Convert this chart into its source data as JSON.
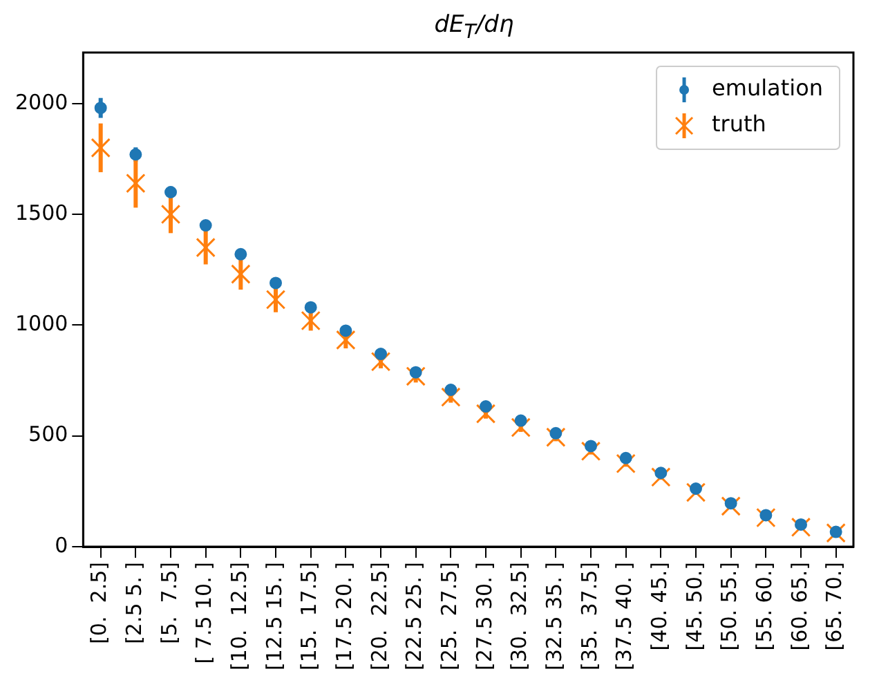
{
  "chart_data": {
    "type": "scatter",
    "title": "dE$_{T}$/dη",
    "categories": [
      "[0.  2.5]",
      "[2.5 5. ]",
      "[5.  7.5]",
      "[ 7.5 10. ]",
      "[10.  12.5]",
      "[12.5 15. ]",
      "[15.  17.5]",
      "[17.5 20. ]",
      "[20.  22.5]",
      "[22.5 25. ]",
      "[25.  27.5]",
      "[27.5 30. ]",
      "[30.  32.5]",
      "[32.5 35. ]",
      "[35.  37.5]",
      "[37.5 40. ]",
      "[40. 45.]",
      "[45. 50.]",
      "[50. 55.]",
      "[55. 60.]",
      "[60. 65.]",
      "[65. 70.]"
    ],
    "series": [
      {
        "name": "emulation",
        "color": "#1f77b4",
        "marker": "circle",
        "values": [
          1980,
          1770,
          1600,
          1450,
          1320,
          1190,
          1080,
          975,
          870,
          787,
          708,
          633,
          569,
          512,
          454,
          400,
          333,
          262,
          196,
          142,
          100,
          67
        ],
        "errors": [
          45,
          32,
          26,
          22,
          18,
          15,
          12,
          10,
          9,
          8,
          7,
          6,
          6,
          5,
          5,
          4,
          4,
          3,
          3,
          3,
          2,
          2
        ]
      },
      {
        "name": "truth",
        "color": "#ff7f0e",
        "marker": "cross",
        "values": [
          1800,
          1640,
          1500,
          1350,
          1230,
          1115,
          1020,
          933,
          835,
          769,
          675,
          600,
          538,
          494,
          431,
          375,
          314,
          245,
          183,
          131,
          88,
          62
        ],
        "errors": [
          110,
          110,
          85,
          76,
          70,
          57,
          45,
          38,
          30,
          28,
          25,
          22,
          20,
          18,
          15,
          14,
          12,
          10,
          9,
          8,
          7,
          6
        ]
      }
    ],
    "ylim": [
      0,
      2230
    ],
    "yticks": [
      0,
      500,
      1000,
      1500,
      2000
    ],
    "grid": false,
    "legend": "top right"
  }
}
